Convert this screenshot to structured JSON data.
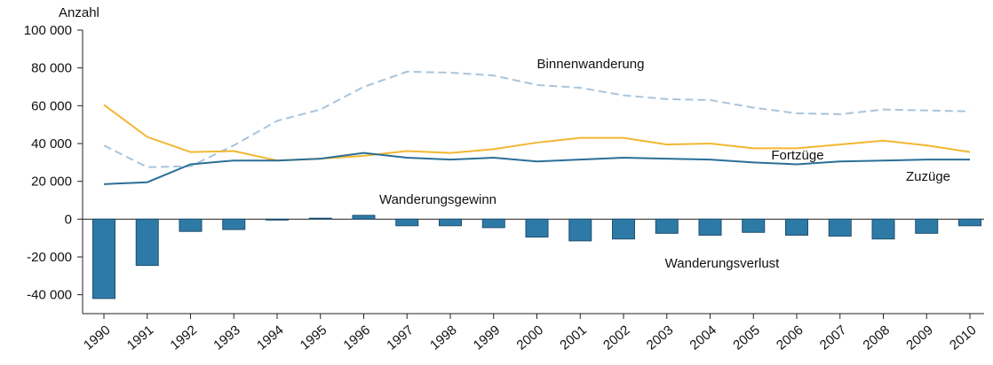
{
  "chart_data": {
    "type": "combo",
    "y_label": "Anzahl",
    "categories": [
      "1990",
      "1991",
      "1992",
      "1993",
      "1994",
      "1995",
      "1996",
      "1997",
      "1998",
      "1999",
      "2000",
      "2001",
      "2002",
      "2003",
      "2004",
      "2005",
      "2006",
      "2007",
      "2008",
      "2009",
      "2010"
    ],
    "ylim": [
      -50000,
      100000
    ],
    "yticks": [
      {
        "value": -40000,
        "label": "-40 000"
      },
      {
        "value": -20000,
        "label": "-20 000"
      },
      0,
      {
        "value": 20000,
        "label": "20 000"
      },
      {
        "value": 40000,
        "label": "40 000"
      },
      {
        "value": 60000,
        "label": "60 000"
      },
      {
        "value": 80000,
        "label": "80 000"
      },
      {
        "value": 100000,
        "label": "100 000"
      }
    ],
    "series": [
      {
        "type": "bar",
        "color": "#2e7aa6",
        "values": [
          -42000,
          -24500,
          -6500,
          -5500,
          -500,
          500,
          2000,
          -3500,
          -3500,
          -4500,
          -9500,
          -11500,
          -10500,
          -7500,
          -8500,
          -7000,
          -8500,
          -9000,
          -10500,
          -7500,
          -3500
        ]
      },
      {
        "type": "line",
        "name": "Binnenwanderung",
        "color": "#a9c4dc",
        "dashed": true,
        "values": [
          39000,
          27500,
          28000,
          39000,
          52000,
          58000,
          70000,
          78000,
          77500,
          76000,
          71000,
          69500,
          65500,
          63500,
          63000,
          59000,
          56000,
          55500,
          58000,
          57500,
          57000
        ]
      },
      {
        "type": "line",
        "name": "Fortzüge",
        "color": "#f2b731",
        "dashed": false,
        "values": [
          60500,
          43500,
          35500,
          36000,
          31000,
          32000,
          33500,
          36000,
          35000,
          37000,
          40500,
          43000,
          43000,
          39500,
          40000,
          37500,
          37500,
          39500,
          41500,
          39000,
          35500
        ]
      },
      {
        "type": "line",
        "name": "Zuzüge",
        "color": "#2a6f97",
        "dashed": false,
        "values": [
          18500,
          19500,
          29000,
          31000,
          31000,
          32000,
          35000,
          32500,
          31500,
          32500,
          30500,
          31500,
          32500,
          32000,
          31500,
          30000,
          29000,
          30500,
          31000,
          31500,
          31500
        ]
      }
    ],
    "annotations": [
      "Wanderungsgewinn",
      "Wanderungsverlust"
    ]
  }
}
